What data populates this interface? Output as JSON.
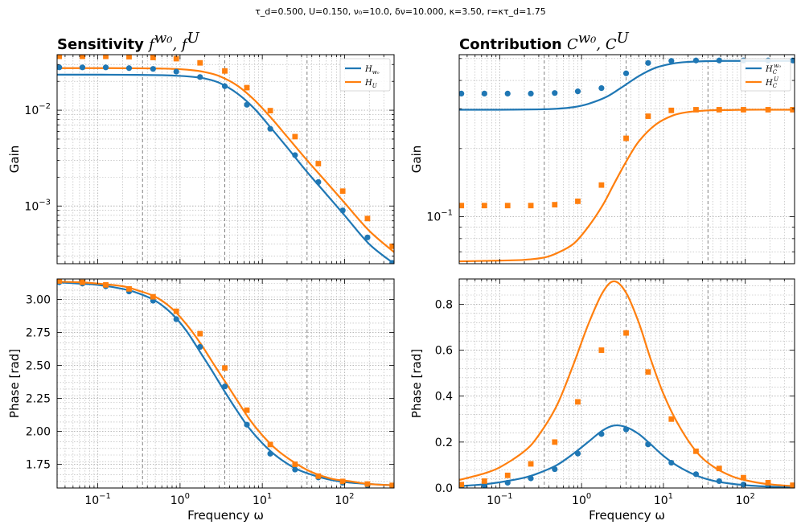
{
  "figure": {
    "suptitle": "τ_d=0.500, U=0.150, ν₀=10.0, δν=10.000, κ=3.50, r=κτ_d=1.75",
    "colors": {
      "blue": "#1f77b4",
      "orange": "#ff7f0e",
      "grid": "#b0b0b0",
      "vline": "#808080"
    }
  },
  "chart_data": [
    {
      "id": "sens_gain",
      "type": "line",
      "title_bold": "Sensitivity",
      "title_math": "f^{w0}, f^U",
      "title_math_parts": [
        "f",
        "w₀",
        ", f",
        "U"
      ],
      "xlabel": "",
      "ylabel": "Gain",
      "xscale": "log",
      "yscale": "log",
      "xlim": [
        0.032,
        400
      ],
      "ylim": [
        0.00025,
        0.038
      ],
      "vlines": [
        0.35,
        3.5,
        35
      ],
      "yticks": [
        {
          "v": 0.01,
          "base": "10",
          "exp": "−2"
        },
        {
          "v": 0.001,
          "base": "10",
          "exp": "−3"
        }
      ],
      "legend": [
        {
          "label": "H",
          "sub": "w₀",
          "color": "blue"
        },
        {
          "label": "H",
          "sub": "U",
          "color": "orange"
        }
      ],
      "series": [
        {
          "name": "H_w0",
          "kind": "line",
          "color": "blue",
          "x": [
            0.032,
            0.1,
            0.3,
            0.6,
            1.0,
            1.5,
            2.0,
            3.0,
            5.0,
            8.0,
            13.0,
            20.0,
            35.0,
            60.0,
            100.0,
            200.0,
            400.0
          ],
          "y": [
            0.0235,
            0.0235,
            0.0234,
            0.0232,
            0.0228,
            0.0222,
            0.0214,
            0.0193,
            0.0149,
            0.0104,
            0.0064,
            0.0041,
            0.00227,
            0.00133,
            0.0008,
            0.0004,
            0.00025
          ]
        },
        {
          "name": "H_U",
          "kind": "line",
          "color": "orange",
          "x": [
            0.032,
            0.1,
            0.3,
            0.6,
            1.0,
            1.5,
            2.0,
            3.0,
            5.0,
            8.0,
            13.0,
            20.0,
            35.0,
            60.0,
            100.0,
            200.0,
            400.0
          ],
          "y": [
            0.0275,
            0.0275,
            0.0274,
            0.0272,
            0.0268,
            0.026,
            0.025,
            0.0227,
            0.018,
            0.0128,
            0.0082,
            0.0053,
            0.003,
            0.00178,
            0.00108,
            0.00055,
            0.00033
          ]
        },
        {
          "name": "H_w0 points",
          "kind": "scatter",
          "marker": "circle",
          "color": "blue",
          "x": [
            0.034,
            0.065,
            0.125,
            0.24,
            0.47,
            0.9,
            1.75,
            3.5,
            6.5,
            12.5,
            25,
            48,
            95,
            190,
            380
          ],
          "y": [
            0.028,
            0.028,
            0.028,
            0.0275,
            0.027,
            0.0253,
            0.0222,
            0.0178,
            0.0114,
            0.0064,
            0.0034,
            0.00178,
            0.0009,
            0.00047,
            0.000255
          ]
        },
        {
          "name": "H_U points",
          "kind": "scatter",
          "marker": "square",
          "color": "orange",
          "x": [
            0.034,
            0.065,
            0.125,
            0.24,
            0.47,
            0.9,
            1.75,
            3.5,
            6.5,
            12.5,
            25,
            48,
            95,
            190,
            380
          ],
          "y": [
            0.0365,
            0.0365,
            0.0365,
            0.0362,
            0.0355,
            0.0345,
            0.0312,
            0.0257,
            0.0172,
            0.0099,
            0.0053,
            0.00277,
            0.00143,
            0.00074,
            0.00038
          ]
        }
      ]
    },
    {
      "id": "contrib_gain",
      "type": "line",
      "title_bold": "Contribution",
      "title_math": "C^{w0}, C^U",
      "title_math_parts": [
        "C",
        "w₀",
        ", C",
        "U"
      ],
      "xlabel": "",
      "ylabel": "Gain",
      "xscale": "log",
      "yscale": "log",
      "xlim": [
        0.032,
        400
      ],
      "ylim": [
        0.062,
        0.52
      ],
      "vlines": [
        0.35,
        3.5,
        35
      ],
      "yticks": [
        {
          "v": 0.1,
          "base": "10",
          "exp": "−1"
        }
      ],
      "legend": [
        {
          "label": "H",
          "sub": "C",
          "sup": "w₀",
          "color": "blue"
        },
        {
          "label": "H",
          "sub": "C",
          "sup": "U",
          "color": "orange"
        }
      ],
      "series": [
        {
          "name": "H_C^w0",
          "kind": "line",
          "color": "blue",
          "x": [
            0.032,
            0.1,
            0.3,
            0.5,
            0.8,
            1.2,
            2.0,
            3.0,
            5.0,
            8.0,
            13.0,
            20.0,
            35.0,
            60.0,
            100.0,
            200.0,
            400.0
          ],
          "y": [
            0.297,
            0.297,
            0.298,
            0.3,
            0.305,
            0.315,
            0.338,
            0.37,
            0.418,
            0.455,
            0.475,
            0.483,
            0.487,
            0.488,
            0.488,
            0.488,
            0.488
          ]
        },
        {
          "name": "H_C^U",
          "kind": "line",
          "color": "orange",
          "x": [
            0.032,
            0.1,
            0.2,
            0.35,
            0.5,
            0.8,
            1.2,
            1.8,
            2.5,
            3.5,
            5.0,
            8.0,
            13.0,
            20.0,
            35.0,
            60.0,
            100.0,
            200.0,
            400.0
          ],
          "y": [
            0.0635,
            0.064,
            0.0645,
            0.066,
            0.069,
            0.076,
            0.09,
            0.112,
            0.14,
            0.175,
            0.215,
            0.255,
            0.28,
            0.29,
            0.295,
            0.296,
            0.297,
            0.297,
            0.297
          ]
        },
        {
          "name": "H_C^w0 points",
          "kind": "scatter",
          "marker": "circle",
          "color": "blue",
          "x": [
            0.034,
            0.065,
            0.125,
            0.24,
            0.47,
            0.9,
            1.75,
            3.5,
            6.5,
            12.5,
            25,
            48,
            95,
            190,
            380
          ],
          "y": [
            0.35,
            0.35,
            0.35,
            0.35,
            0.352,
            0.358,
            0.37,
            0.43,
            0.478,
            0.488,
            0.49,
            0.49,
            0.49,
            0.49,
            0.49
          ]
        },
        {
          "name": "H_C^U points",
          "kind": "scatter",
          "marker": "square",
          "color": "orange",
          "x": [
            0.034,
            0.065,
            0.125,
            0.24,
            0.47,
            0.9,
            1.75,
            3.5,
            6.5,
            12.5,
            25,
            48,
            95,
            190,
            380
          ],
          "y": [
            0.112,
            0.112,
            0.112,
            0.112,
            0.113,
            0.117,
            0.138,
            0.222,
            0.278,
            0.295,
            0.297,
            0.297,
            0.297,
            0.297,
            0.297
          ]
        }
      ]
    },
    {
      "id": "sens_phase",
      "type": "line",
      "xlabel": "Frequency ω",
      "ylabel": "Phase [rad]",
      "xscale": "log",
      "yscale": "linear",
      "xlim": [
        0.032,
        400
      ],
      "ylim": [
        1.57,
        3.155
      ],
      "vlines": [
        0.35,
        3.5,
        35
      ],
      "xticks": [
        {
          "v": 0.1,
          "base": "10",
          "exp": "−1"
        },
        {
          "v": 1,
          "base": "10",
          "exp": "0"
        },
        {
          "v": 10,
          "base": "10",
          "exp": "1"
        },
        {
          "v": 100,
          "base": "10",
          "exp": "2"
        }
      ],
      "yticks": [
        {
          "v": 1.75,
          "label": "1.75"
        },
        {
          "v": 2.0,
          "label": "2.00"
        },
        {
          "v": 2.25,
          "label": "2.25"
        },
        {
          "v": 2.5,
          "label": "2.50"
        },
        {
          "v": 2.75,
          "label": "2.75"
        },
        {
          "v": 3.0,
          "label": "3.00"
        }
      ],
      "series": [
        {
          "name": "H_w0 phase",
          "kind": "line",
          "color": "blue",
          "x": [
            0.032,
            0.06,
            0.1,
            0.2,
            0.3,
            0.5,
            0.8,
            1.2,
            1.8,
            2.5,
            3.5,
            5.0,
            7.0,
            10.0,
            15.0,
            25.0,
            40.0,
            70.0,
            120.0,
            200.0,
            400.0
          ],
          "y": [
            3.13,
            3.12,
            3.11,
            3.08,
            3.05,
            2.99,
            2.89,
            2.76,
            2.59,
            2.45,
            2.3,
            2.15,
            2.02,
            1.91,
            1.81,
            1.72,
            1.67,
            1.63,
            1.61,
            1.6,
            1.59
          ]
        },
        {
          "name": "H_U phase",
          "kind": "line",
          "color": "orange",
          "x": [
            0.032,
            0.06,
            0.1,
            0.2,
            0.3,
            0.5,
            0.8,
            1.2,
            1.8,
            2.5,
            3.5,
            5.0,
            7.0,
            10.0,
            15.0,
            25.0,
            40.0,
            70.0,
            120.0,
            200.0,
            400.0
          ],
          "y": [
            3.135,
            3.13,
            3.12,
            3.1,
            3.07,
            3.02,
            2.93,
            2.81,
            2.66,
            2.52,
            2.38,
            2.23,
            2.09,
            1.97,
            1.86,
            1.76,
            1.69,
            1.64,
            1.62,
            1.6,
            1.59
          ]
        },
        {
          "name": "H_w0 phase points",
          "kind": "scatter",
          "marker": "circle",
          "color": "blue",
          "x": [
            0.034,
            0.065,
            0.125,
            0.24,
            0.47,
            0.9,
            1.75,
            3.5,
            6.5,
            12.5,
            25,
            48,
            95,
            190,
            380
          ],
          "y": [
            3.13,
            3.12,
            3.1,
            3.06,
            2.99,
            2.85,
            2.64,
            2.34,
            2.05,
            1.83,
            1.71,
            1.65,
            1.61,
            1.59,
            1.585
          ]
        },
        {
          "name": "H_U phase points",
          "kind": "scatter",
          "marker": "square",
          "color": "orange",
          "x": [
            0.034,
            0.065,
            0.125,
            0.24,
            0.47,
            0.9,
            1.75,
            3.5,
            6.5,
            12.5,
            25,
            48,
            95,
            190,
            380
          ],
          "y": [
            3.14,
            3.13,
            3.11,
            3.08,
            3.02,
            2.91,
            2.74,
            2.48,
            2.16,
            1.9,
            1.75,
            1.66,
            1.62,
            1.6,
            1.59
          ]
        }
      ]
    },
    {
      "id": "contrib_phase",
      "type": "line",
      "xlabel": "Frequency ω",
      "ylabel": "Phase [rad]",
      "xscale": "log",
      "yscale": "linear",
      "xlim": [
        0.032,
        400
      ],
      "ylim": [
        0.0,
        0.91
      ],
      "vlines": [
        0.35,
        3.5,
        35
      ],
      "xticks": [
        {
          "v": 0.1,
          "base": "10",
          "exp": "−1"
        },
        {
          "v": 1,
          "base": "10",
          "exp": "0"
        },
        {
          "v": 10,
          "base": "10",
          "exp": "1"
        },
        {
          "v": 100,
          "base": "10",
          "exp": "2"
        }
      ],
      "yticks": [
        {
          "v": 0.0,
          "label": "0.0"
        },
        {
          "v": 0.2,
          "label": "0.2"
        },
        {
          "v": 0.4,
          "label": "0.4"
        },
        {
          "v": 0.6,
          "label": "0.6"
        },
        {
          "v": 0.8,
          "label": "0.8"
        }
      ],
      "series": [
        {
          "name": "H_C^w0 phase",
          "kind": "line",
          "color": "blue",
          "x": [
            0.032,
            0.06,
            0.1,
            0.2,
            0.3,
            0.5,
            0.8,
            1.2,
            1.8,
            2.5,
            3.5,
            5.0,
            7.0,
            10.0,
            15.0,
            25.0,
            40.0,
            70.0,
            120.0,
            200.0,
            400.0
          ],
          "y": [
            0.008,
            0.015,
            0.025,
            0.045,
            0.065,
            0.1,
            0.15,
            0.2,
            0.25,
            0.272,
            0.265,
            0.235,
            0.19,
            0.14,
            0.095,
            0.055,
            0.032,
            0.018,
            0.01,
            0.006,
            0.003
          ]
        },
        {
          "name": "H_C^U phase",
          "kind": "line",
          "color": "orange",
          "x": [
            0.032,
            0.06,
            0.1,
            0.2,
            0.3,
            0.5,
            0.8,
            1.2,
            1.8,
            2.5,
            3.5,
            5.0,
            7.0,
            10.0,
            15.0,
            25.0,
            40.0,
            70.0,
            120.0,
            200.0,
            400.0
          ],
          "y": [
            0.035,
            0.06,
            0.09,
            0.16,
            0.23,
            0.36,
            0.54,
            0.71,
            0.85,
            0.9,
            0.85,
            0.72,
            0.56,
            0.41,
            0.28,
            0.16,
            0.095,
            0.05,
            0.028,
            0.016,
            0.008
          ]
        },
        {
          "name": "H_C^w0 phase points",
          "kind": "scatter",
          "marker": "circle",
          "color": "blue",
          "x": [
            0.034,
            0.065,
            0.125,
            0.24,
            0.47,
            0.9,
            1.75,
            3.5,
            6.5,
            12.5,
            25,
            48,
            95,
            190,
            380
          ],
          "y": [
            0.005,
            0.012,
            0.023,
            0.042,
            0.082,
            0.15,
            0.235,
            0.255,
            0.19,
            0.11,
            0.06,
            0.03,
            0.015,
            0.008,
            0.004
          ]
        },
        {
          "name": "H_C^U phase points",
          "kind": "scatter",
          "marker": "square",
          "color": "orange",
          "x": [
            0.034,
            0.065,
            0.125,
            0.24,
            0.47,
            0.9,
            1.75,
            3.5,
            6.5,
            12.5,
            25,
            48,
            95,
            190,
            380
          ],
          "y": [
            0.015,
            0.03,
            0.055,
            0.105,
            0.2,
            0.375,
            0.6,
            0.675,
            0.505,
            0.3,
            0.16,
            0.085,
            0.045,
            0.023,
            0.012
          ]
        }
      ]
    }
  ]
}
